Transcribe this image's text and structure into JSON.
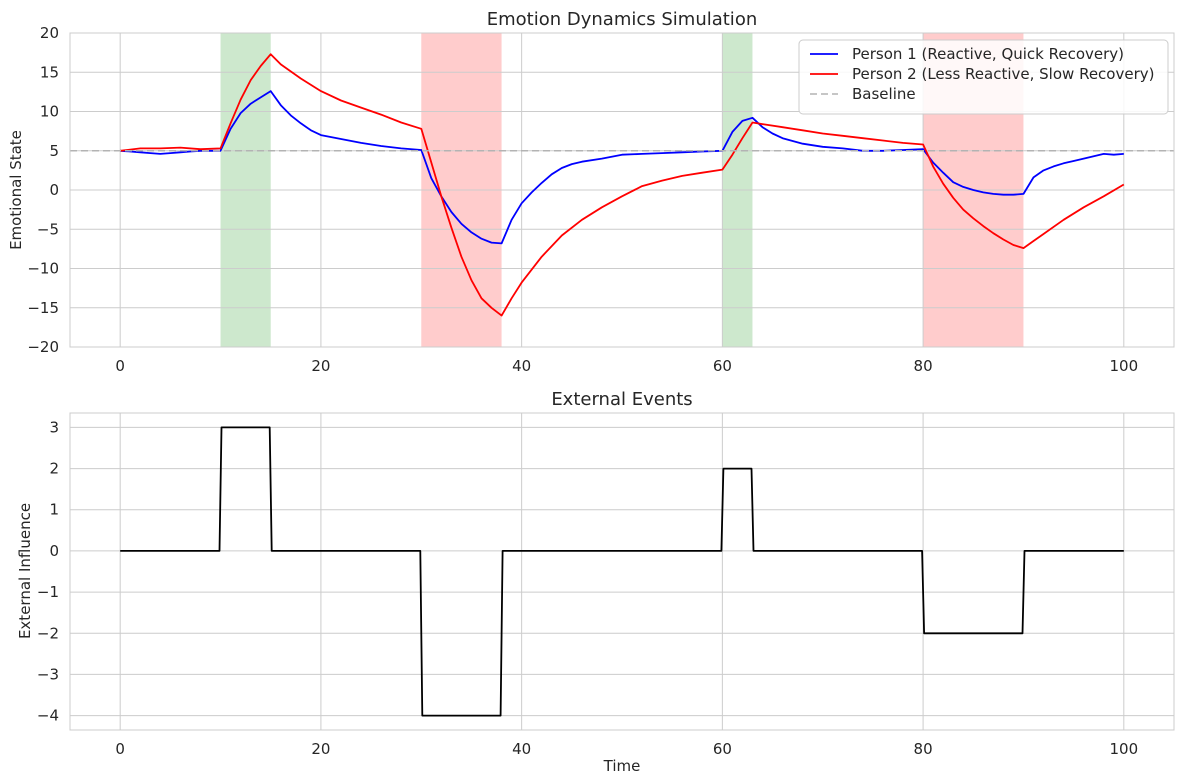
{
  "chart_data": [
    {
      "type": "line",
      "title": "Emotion Dynamics Simulation",
      "xlabel": "",
      "ylabel": "Emotional State",
      "xlim": [
        -5,
        105
      ],
      "ylim": [
        -20,
        20
      ],
      "xticks": [
        0,
        20,
        40,
        60,
        80,
        100
      ],
      "yticks": [
        -20,
        -15,
        -10,
        -5,
        0,
        5,
        10,
        15,
        20
      ],
      "grid": true,
      "legend": "top-right",
      "shaded_regions": [
        {
          "x0": 10,
          "x1": 15,
          "color": "#2ca02c"
        },
        {
          "x0": 30,
          "x1": 38,
          "color": "#ff0000"
        },
        {
          "x0": 60,
          "x1": 63,
          "color": "#2ca02c"
        },
        {
          "x0": 80,
          "x1": 90,
          "color": "#ff0000"
        }
      ],
      "series": [
        {
          "name": "Person 1 (Reactive, Quick Recovery)",
          "color": "#0000ff",
          "x": [
            0,
            1,
            2,
            3,
            4,
            5,
            6,
            7,
            8,
            9,
            10,
            11,
            12,
            13,
            14,
            15,
            16,
            17,
            18,
            19,
            20,
            22,
            24,
            26,
            28,
            30,
            31,
            32,
            33,
            34,
            35,
            36,
            37,
            38,
            39,
            40,
            41,
            42,
            43,
            44,
            45,
            46,
            48,
            50,
            52,
            54,
            56,
            58,
            60,
            61,
            62,
            63,
            64,
            65,
            66,
            68,
            70,
            72,
            74,
            76,
            78,
            80,
            81,
            82,
            83,
            84,
            85,
            86,
            87,
            88,
            89,
            90,
            91,
            92,
            93,
            94,
            95,
            96,
            97,
            98,
            99,
            100
          ],
          "y": [
            5.0,
            4.9,
            4.8,
            4.7,
            4.6,
            4.7,
            4.8,
            4.9,
            5.0,
            5.0,
            5.0,
            7.8,
            9.8,
            11.0,
            11.8,
            12.6,
            10.8,
            9.5,
            8.5,
            7.6,
            7.0,
            6.5,
            6.0,
            5.6,
            5.3,
            5.1,
            1.5,
            -0.8,
            -2.8,
            -4.3,
            -5.4,
            -6.2,
            -6.7,
            -6.8,
            -3.8,
            -1.7,
            -0.3,
            0.9,
            2.0,
            2.8,
            3.3,
            3.6,
            4.0,
            4.5,
            4.6,
            4.7,
            4.8,
            4.9,
            5.0,
            7.4,
            8.8,
            9.2,
            8.0,
            7.2,
            6.6,
            5.9,
            5.5,
            5.3,
            5.0,
            5.0,
            5.1,
            5.2,
            3.5,
            2.2,
            1.0,
            0.4,
            0.0,
            -0.3,
            -0.5,
            -0.6,
            -0.6,
            -0.5,
            1.6,
            2.5,
            3.0,
            3.4,
            3.7,
            4.0,
            4.3,
            4.6,
            4.5,
            4.6
          ]
        },
        {
          "name": "Person 2 (Less Reactive, Slow Recovery)",
          "color": "#ff0000",
          "x": [
            0,
            2,
            4,
            6,
            8,
            10,
            11,
            12,
            13,
            14,
            15,
            16,
            18,
            20,
            22,
            24,
            26,
            28,
            30,
            31,
            32,
            33,
            34,
            35,
            36,
            37,
            38,
            39,
            40,
            42,
            44,
            46,
            48,
            50,
            52,
            54,
            56,
            58,
            60,
            61,
            62,
            63,
            64,
            66,
            68,
            70,
            72,
            74,
            76,
            78,
            80,
            81,
            82,
            83,
            84,
            85,
            86,
            87,
            88,
            89,
            90,
            91,
            92,
            94,
            96,
            98,
            100
          ],
          "y": [
            5.0,
            5.3,
            5.3,
            5.4,
            5.2,
            5.3,
            8.5,
            11.5,
            14.0,
            15.8,
            17.3,
            16.0,
            14.2,
            12.6,
            11.4,
            10.5,
            9.6,
            8.6,
            7.8,
            3.5,
            -0.8,
            -4.8,
            -8.5,
            -11.5,
            -13.8,
            -15.0,
            -16.0,
            -13.8,
            -11.8,
            -8.5,
            -5.8,
            -3.8,
            -2.2,
            -0.8,
            0.5,
            1.2,
            1.8,
            2.2,
            2.6,
            4.5,
            6.6,
            8.6,
            8.4,
            8.0,
            7.6,
            7.2,
            6.9,
            6.6,
            6.3,
            6.0,
            5.8,
            3.0,
            0.8,
            -1.0,
            -2.5,
            -3.6,
            -4.6,
            -5.5,
            -6.3,
            -7.0,
            -7.4,
            -6.5,
            -5.6,
            -3.8,
            -2.2,
            -0.8,
            0.7
          ]
        },
        {
          "name": "Baseline",
          "color": "#b3b3b3",
          "dashed": true,
          "x": [
            -5,
            105
          ],
          "y": [
            5,
            5
          ]
        }
      ]
    },
    {
      "type": "line",
      "title": "External Events",
      "xlabel": "Time",
      "ylabel": "External Influence",
      "xlim": [
        -5,
        105
      ],
      "ylim": [
        -4.35,
        3.35
      ],
      "xticks": [
        0,
        20,
        40,
        60,
        80,
        100
      ],
      "yticks": [
        -4,
        -3,
        -2,
        -1,
        0,
        1,
        2,
        3
      ],
      "grid": true,
      "series": [
        {
          "color": "#000000",
          "x": [
            0,
            9.9,
            10.1,
            14.9,
            15.1,
            29.9,
            30.1,
            37.9,
            38.1,
            59.9,
            60.1,
            62.9,
            63.1,
            79.9,
            80.1,
            89.9,
            90.1,
            100
          ],
          "y": [
            0,
            0,
            3,
            3,
            0,
            0,
            -4,
            -4,
            0,
            0,
            2,
            2,
            0,
            0,
            -2,
            -2,
            0,
            0
          ]
        }
      ]
    }
  ]
}
